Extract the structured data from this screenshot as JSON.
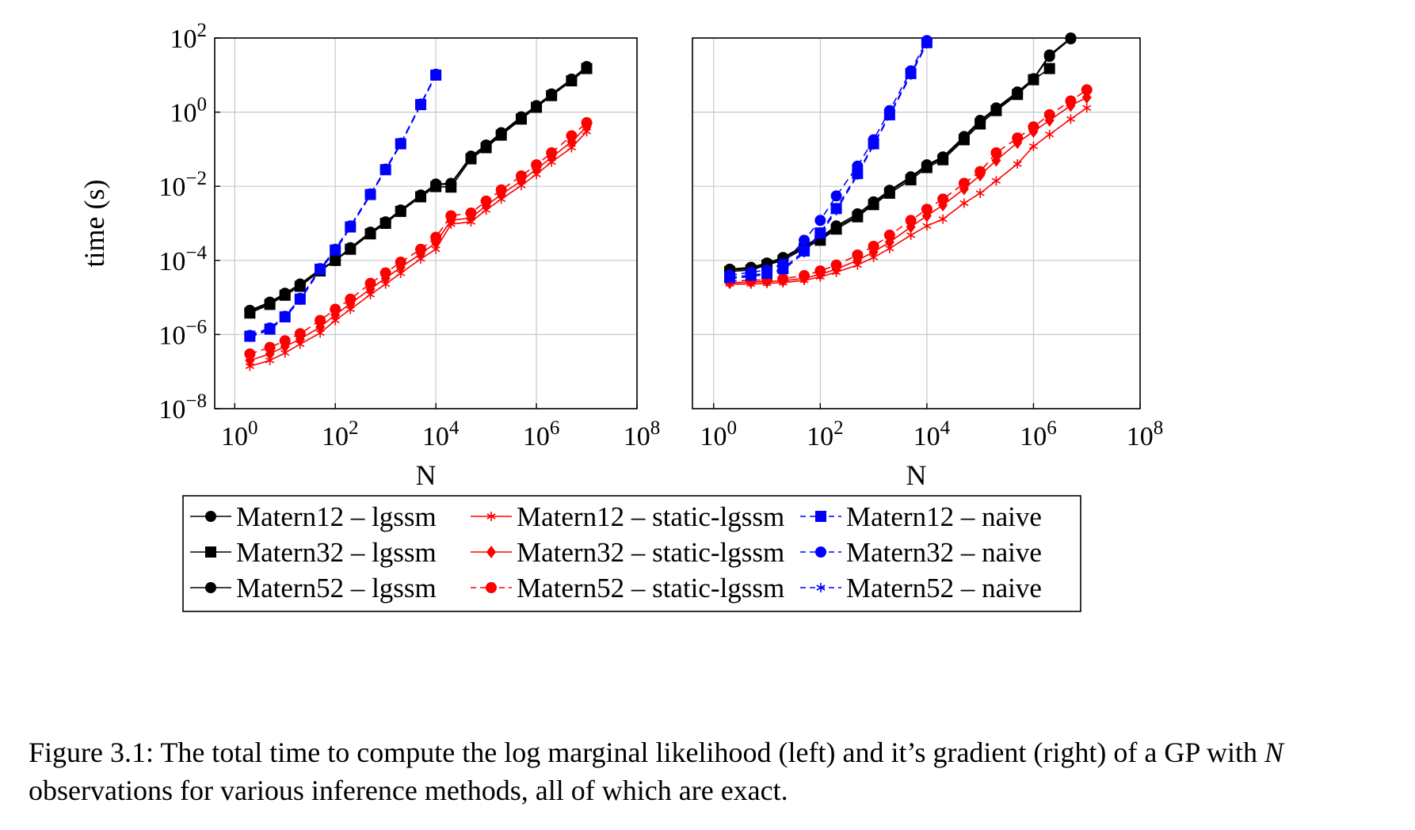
{
  "figure": {
    "caption_prefix": "Figure 3.1: The total time to compute the log marginal likelihood (left) and it’s gradient (right) of a GP with ",
    "caption_var": "N",
    "caption_suffix": " observations for various inference methods, all of which are exact."
  },
  "legend_columns": 3,
  "chart_data": [
    {
      "type": "line",
      "panel": "left",
      "xlabel": "N",
      "ylabel": "time (s)",
      "xscale": "log",
      "yscale": "log",
      "xlim": [
        0.4,
        100000000
      ],
      "ylim": [
        1e-08,
        100
      ],
      "xticks": [
        "10^0",
        "10^2",
        "10^4",
        "10^6",
        "10^8"
      ],
      "yticks": [
        "10^-8",
        "10^-6",
        "10^-4",
        "10^-2",
        "10^0",
        "10^2"
      ],
      "grid": true,
      "series": [
        {
          "name": "Matern12 – lgssm",
          "color": "#000000",
          "marker": "circle",
          "dash": "solid",
          "x": [
            2,
            5,
            10,
            20,
            50,
            100,
            200,
            500,
            1000,
            2000,
            5000,
            10000,
            20000,
            50000,
            100000,
            200000,
            500000,
            1000000,
            2000000,
            5000000,
            10000000
          ],
          "y": [
            4.5e-06,
            7.5e-06,
            1.3e-05,
            2.3e-05,
            5.8e-05,
            0.0001,
            0.00022,
            0.00058,
            0.0011,
            0.0023,
            0.0058,
            0.0115,
            0.012,
            0.065,
            0.13,
            0.28,
            0.75,
            1.5,
            3.1,
            7.8,
            17
          ]
        },
        {
          "name": "Matern32 – lgssm",
          "color": "#000000",
          "marker": "square",
          "dash": "solid",
          "x": [
            2,
            5,
            10,
            20,
            50,
            100,
            200,
            500,
            1000,
            2000,
            5000,
            10000,
            20000,
            50000,
            100000,
            200000,
            500000,
            1000000,
            2000000,
            5000000,
            10000000
          ],
          "y": [
            3.8e-06,
            6.5e-06,
            1.15e-05,
            2e-05,
            5.2e-05,
            0.0001,
            0.0002,
            0.00052,
            0.001,
            0.0021,
            0.0052,
            0.0098,
            0.0095,
            0.055,
            0.11,
            0.24,
            0.65,
            1.35,
            2.8,
            7,
            15
          ]
        },
        {
          "name": "Matern52 – lgssm",
          "color": "#000000",
          "marker": "circle",
          "dash": "solid",
          "x": [
            2,
            5,
            10,
            20,
            50,
            100,
            200,
            500,
            1000,
            2000,
            5000,
            10000,
            20000,
            50000,
            100000,
            200000,
            500000,
            1000000,
            2000000,
            5000000,
            10000000
          ],
          "y": [
            4.2e-06,
            7e-06,
            1.25e-05,
            2.2e-05,
            5.5e-05,
            0.0001,
            0.00021,
            0.00055,
            0.00105,
            0.0022,
            0.0055,
            0.011,
            0.0115,
            0.06,
            0.12,
            0.26,
            0.7,
            1.4,
            3,
            7.5,
            16
          ]
        },
        {
          "name": "Matern12 – static-lgssm",
          "color": "#ff0000",
          "marker": "star",
          "dash": "solid",
          "x": [
            2,
            5,
            10,
            20,
            50,
            100,
            200,
            500,
            1000,
            2000,
            5000,
            10000,
            20000,
            50000,
            100000,
            200000,
            500000,
            1000000,
            2000000,
            5000000,
            10000000
          ],
          "y": [
            1.4e-07,
            2e-07,
            3.2e-07,
            5.5e-07,
            1.1e-06,
            2.4e-06,
            4.8e-06,
            1.2e-05,
            2.3e-05,
            4.5e-05,
            0.00011,
            0.0002,
            0.00095,
            0.0011,
            0.0023,
            0.0045,
            0.0105,
            0.021,
            0.045,
            0.11,
            0.3
          ]
        },
        {
          "name": "Matern32 – static-lgssm",
          "color": "#ff0000",
          "marker": "diamond",
          "dash": "solid",
          "x": [
            2,
            5,
            10,
            20,
            50,
            100,
            200,
            500,
            1000,
            2000,
            5000,
            10000,
            20000,
            50000,
            100000,
            200000,
            500000,
            1000000,
            2000000,
            5000000,
            10000000
          ],
          "y": [
            2e-07,
            3e-07,
            4.8e-07,
            7.5e-07,
            1.6e-06,
            3.4e-06,
            6.8e-06,
            1.7e-05,
            3.3e-05,
            6.5e-05,
            0.00015,
            0.0003,
            0.0012,
            0.0014,
            0.003,
            0.006,
            0.014,
            0.029,
            0.06,
            0.16,
            0.4
          ]
        },
        {
          "name": "Matern52 – static-lgssm",
          "color": "#ff0000",
          "marker": "circle",
          "dash": "dashed",
          "x": [
            2,
            5,
            10,
            20,
            50,
            100,
            200,
            500,
            1000,
            2000,
            5000,
            10000,
            20000,
            50000,
            100000,
            200000,
            500000,
            1000000,
            2000000,
            5000000,
            10000000
          ],
          "y": [
            3e-07,
            4.5e-07,
            6.8e-07,
            1.05e-06,
            2.4e-06,
            4.8e-06,
            9e-06,
            2.4e-05,
            4.6e-05,
            9e-05,
            0.0002,
            0.00042,
            0.0016,
            0.0019,
            0.004,
            0.008,
            0.019,
            0.038,
            0.08,
            0.23,
            0.52
          ]
        },
        {
          "name": "Matern12 – naive",
          "color": "#0000ff",
          "marker": "square",
          "dash": "dashed",
          "x": [
            2,
            5,
            10,
            20,
            50,
            100,
            200,
            500,
            1000,
            2000,
            5000,
            10000
          ],
          "y": [
            9e-07,
            1.4e-06,
            3e-06,
            9e-06,
            5.8e-05,
            0.00019,
            0.0008,
            0.006,
            0.028,
            0.14,
            1.6,
            10
          ]
        },
        {
          "name": "Matern32 – naive",
          "color": "#0000ff",
          "marker": "circle",
          "dash": "dashed",
          "x": [
            2,
            5,
            10,
            20,
            50,
            100,
            200,
            500,
            1000,
            2000,
            5000,
            10000
          ],
          "y": [
            9.5e-07,
            1.5e-06,
            3.1e-06,
            9.5e-06,
            6e-05,
            0.0002,
            0.00085,
            0.0062,
            0.029,
            0.145,
            1.65,
            10.5
          ]
        },
        {
          "name": "Matern52 – naive",
          "color": "#0000ff",
          "marker": "star",
          "dash": "dashed",
          "x": [
            2,
            5,
            10,
            20,
            50,
            100,
            200,
            500,
            1000,
            2000,
            5000,
            10000
          ],
          "y": [
            8.5e-07,
            1.35e-06,
            2.9e-06,
            8.5e-06,
            5.5e-05,
            0.00018,
            0.00078,
            0.0058,
            0.027,
            0.135,
            1.55,
            9.8
          ]
        }
      ]
    },
    {
      "type": "line",
      "panel": "right",
      "xlabel": "N",
      "ylabel": "",
      "xscale": "log",
      "yscale": "log",
      "xlim": [
        0.4,
        100000000
      ],
      "ylim": [
        1e-08,
        100
      ],
      "xticks": [
        "10^0",
        "10^2",
        "10^4",
        "10^6",
        "10^8"
      ],
      "yticks": [],
      "grid": true,
      "series": [
        {
          "name": "Matern12 – lgssm",
          "color": "#000000",
          "marker": "circle",
          "dash": "solid",
          "x": [
            2,
            5,
            10,
            20,
            50,
            100,
            200,
            500,
            1000,
            2000,
            5000,
            10000,
            20000,
            50000,
            100000,
            200000,
            500000,
            1000000,
            2000000,
            5000000
          ],
          "y": [
            5.8e-05,
            6.5e-05,
            8.5e-05,
            0.00012,
            0.00025,
            0.00042,
            0.00085,
            0.0018,
            0.0038,
            0.0078,
            0.018,
            0.038,
            0.062,
            0.22,
            0.6,
            1.3,
            3.5,
            8,
            35,
            100
          ]
        },
        {
          "name": "Matern32 – lgssm",
          "color": "#000000",
          "marker": "square",
          "dash": "solid",
          "x": [
            2,
            5,
            10,
            20,
            50,
            100,
            200,
            500,
            1000,
            2000,
            5000,
            10000,
            20000,
            50000,
            100000,
            200000,
            500000,
            1000000,
            2000000
          ],
          "y": [
            5e-05,
            5.5e-05,
            7.5e-05,
            0.0001,
            0.00021,
            0.00035,
            0.0007,
            0.0015,
            0.0032,
            0.0065,
            0.015,
            0.032,
            0.052,
            0.18,
            0.48,
            1.1,
            3,
            7.5,
            15
          ]
        },
        {
          "name": "Matern52 – lgssm",
          "color": "#000000",
          "marker": "circle",
          "dash": "solid",
          "x": [
            2,
            5,
            10,
            20,
            50,
            100,
            200,
            500,
            1000,
            2000,
            5000,
            10000,
            20000,
            50000,
            100000,
            200000,
            500000,
            1000000,
            2000000,
            5000000
          ],
          "y": [
            5.5e-05,
            6e-05,
            8e-05,
            0.00011,
            0.00023,
            0.00038,
            0.00078,
            0.0016,
            0.0035,
            0.0072,
            0.017,
            0.035,
            0.058,
            0.2,
            0.55,
            1.2,
            3.2,
            7.8,
            32,
            95
          ]
        },
        {
          "name": "Matern12 – static-lgssm",
          "color": "#ff0000",
          "marker": "star",
          "dash": "solid",
          "x": [
            2,
            5,
            10,
            20,
            50,
            100,
            200,
            500,
            1000,
            2000,
            5000,
            10000,
            20000,
            50000,
            100000,
            200000,
            500000,
            1000000,
            2000000,
            5000000,
            10000000
          ],
          "y": [
            2.3e-05,
            2.3e-05,
            2.4e-05,
            2.5e-05,
            2.9e-05,
            3.6e-05,
            4.8e-05,
            7.5e-05,
            0.00012,
            0.00021,
            0.00048,
            0.00085,
            0.0013,
            0.0035,
            0.0065,
            0.014,
            0.04,
            0.12,
            0.25,
            0.65,
            1.3
          ]
        },
        {
          "name": "Matern32 – static-lgssm",
          "color": "#ff0000",
          "marker": "diamond",
          "dash": "solid",
          "x": [
            2,
            5,
            10,
            20,
            50,
            100,
            200,
            500,
            1000,
            2000,
            5000,
            10000,
            20000,
            50000,
            100000,
            200000,
            500000,
            1000000,
            2000000,
            5000000,
            10000000
          ],
          "y": [
            2.5e-05,
            2.6e-05,
            2.7e-05,
            2.8e-05,
            3.3e-05,
            4.2e-05,
            5.8e-05,
            0.0001,
            0.00017,
            0.00031,
            0.0008,
            0.0016,
            0.0031,
            0.0085,
            0.02,
            0.05,
            0.15,
            0.3,
            0.6,
            1.5,
            2.5
          ]
        },
        {
          "name": "Matern52 – static-lgssm",
          "color": "#ff0000",
          "marker": "circle",
          "dash": "dashed",
          "x": [
            2,
            5,
            10,
            20,
            50,
            100,
            200,
            500,
            1000,
            2000,
            5000,
            10000,
            20000,
            50000,
            100000,
            200000,
            500000,
            1000000,
            2000000,
            5000000,
            10000000
          ],
          "y": [
            2.8e-05,
            2.9e-05,
            3e-05,
            3.2e-05,
            3.9e-05,
            5.2e-05,
            7.5e-05,
            0.00014,
            0.00024,
            0.00048,
            0.0012,
            0.0024,
            0.0045,
            0.012,
            0.025,
            0.08,
            0.2,
            0.4,
            0.85,
            2,
            4
          ]
        },
        {
          "name": "Matern12 – naive",
          "color": "#0000ff",
          "marker": "square",
          "dash": "dashed",
          "x": [
            2,
            5,
            10,
            20,
            50,
            100,
            200,
            500,
            1000,
            2000,
            5000,
            10000
          ],
          "y": [
            3.5e-05,
            4e-05,
            4.5e-05,
            6e-05,
            0.00018,
            0.00055,
            0.0025,
            0.022,
            0.14,
            0.85,
            11,
            75
          ]
        },
        {
          "name": "Matern32 – naive",
          "color": "#0000ff",
          "marker": "circle",
          "dash": "dashed",
          "x": [
            2,
            5,
            10,
            20,
            50,
            100,
            200,
            500,
            1000,
            2000,
            5000,
            10000
          ],
          "y": [
            4e-05,
            4.8e-05,
            5.5e-05,
            8e-05,
            0.00035,
            0.0012,
            0.0055,
            0.035,
            0.18,
            1.1,
            13,
            85
          ]
        },
        {
          "name": "Matern52 – naive",
          "color": "#0000ff",
          "marker": "star",
          "dash": "dashed",
          "x": [
            2,
            5,
            10,
            20,
            50,
            100,
            200,
            500,
            1000,
            2000,
            5000,
            10000
          ],
          "y": [
            3.2e-05,
            3.7e-05,
            4.2e-05,
            5.5e-05,
            0.00016,
            0.0005,
            0.0022,
            0.02,
            0.13,
            0.8,
            10,
            70
          ]
        }
      ]
    }
  ]
}
